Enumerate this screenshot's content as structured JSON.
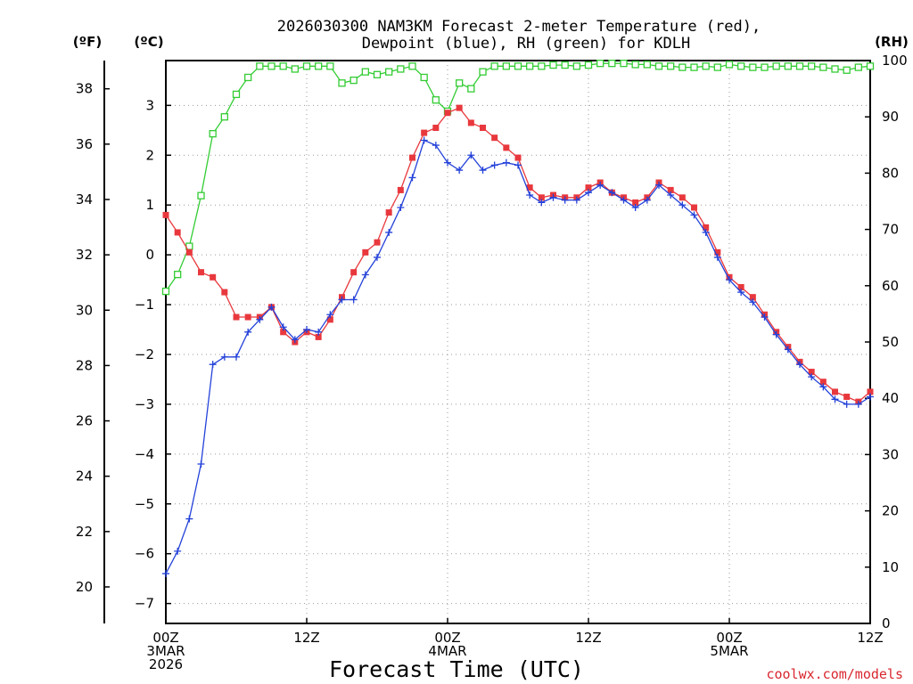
{
  "chart_data": {
    "type": "line",
    "title_line1": "2026030300 NAM3KM Forecast 2-meter Temperature (red),",
    "title_line2": "Dewpoint (blue), RH (green) for KDLH",
    "xlabel": "Forecast Time (UTC)",
    "credit": "coolwx.com/models",
    "units": {
      "fahrenheit": "(ºF)",
      "celsius": "(ºC)",
      "rh": "(RH)"
    },
    "x_range_hours": [
      0,
      60
    ],
    "x_ticks": [
      {
        "hour": 0,
        "lines": [
          "00Z",
          "3MAR",
          "2026"
        ]
      },
      {
        "hour": 12,
        "lines": [
          "12Z"
        ]
      },
      {
        "hour": 24,
        "lines": [
          "00Z",
          "4MAR"
        ]
      },
      {
        "hour": 36,
        "lines": [
          "12Z"
        ]
      },
      {
        "hour": 48,
        "lines": [
          "00Z",
          "5MAR"
        ]
      },
      {
        "hour": 60,
        "lines": [
          "12Z"
        ]
      }
    ],
    "celsius_axis": {
      "range": [
        -7.4,
        3.9
      ],
      "ticks": [
        -7,
        -6,
        -5,
        -4,
        -3,
        -2,
        -1,
        0,
        1,
        2,
        3
      ]
    },
    "fahrenheit_axis": {
      "ticks": [
        20,
        22,
        24,
        26,
        28,
        30,
        32,
        34,
        36,
        38
      ]
    },
    "rh_axis": {
      "range": [
        0,
        100
      ],
      "ticks": [
        0,
        10,
        20,
        30,
        40,
        50,
        60,
        70,
        80,
        90,
        100
      ]
    },
    "colors": {
      "temperature": "#e8383d",
      "dewpoint": "#2341d9",
      "rh": "#33cc33"
    },
    "series": [
      {
        "name": "Temperature",
        "units": "C",
        "hours": [
          0,
          1,
          2,
          3,
          4,
          5,
          6,
          7,
          8,
          9,
          10,
          11,
          12,
          13,
          14,
          15,
          16,
          17,
          18,
          19,
          20,
          21,
          22,
          23,
          24,
          25,
          26,
          27,
          28,
          29,
          30,
          31,
          32,
          33,
          34,
          35,
          36,
          37,
          38,
          39,
          40,
          41,
          42,
          43,
          44,
          45,
          46,
          47,
          48,
          49,
          50,
          51,
          52,
          53,
          54,
          55,
          56,
          57,
          58,
          59,
          60
        ],
        "values": [
          0.8,
          0.45,
          0.05,
          -0.35,
          -0.45,
          -0.75,
          -1.25,
          -1.25,
          -1.25,
          -1.05,
          -1.55,
          -1.75,
          -1.55,
          -1.65,
          -1.3,
          -0.85,
          -0.35,
          0.05,
          0.25,
          0.85,
          1.3,
          1.95,
          2.45,
          2.55,
          2.85,
          2.95,
          2.65,
          2.55,
          2.35,
          2.15,
          1.95,
          1.35,
          1.15,
          1.2,
          1.15,
          1.15,
          1.35,
          1.45,
          1.25,
          1.15,
          1.05,
          1.15,
          1.45,
          1.3,
          1.15,
          0.95,
          0.55,
          0.05,
          -0.45,
          -0.65,
          -0.85,
          -1.2,
          -1.55,
          -1.85,
          -2.15,
          -2.35,
          -2.55,
          -2.75,
          -2.85,
          -2.95,
          -2.75
        ]
      },
      {
        "name": "Dewpoint",
        "units": "C",
        "hours": [
          0,
          1,
          2,
          3,
          4,
          5,
          6,
          7,
          8,
          9,
          10,
          11,
          12,
          13,
          14,
          15,
          16,
          17,
          18,
          19,
          20,
          21,
          22,
          23,
          24,
          25,
          26,
          27,
          28,
          29,
          30,
          31,
          32,
          33,
          34,
          35,
          36,
          37,
          38,
          39,
          40,
          41,
          42,
          43,
          44,
          45,
          46,
          47,
          48,
          49,
          50,
          51,
          52,
          53,
          54,
          55,
          56,
          57,
          58,
          59,
          60
        ],
        "values": [
          -6.4,
          -5.95,
          -5.3,
          -4.2,
          -2.2,
          -2.05,
          -2.05,
          -1.55,
          -1.3,
          -1.05,
          -1.45,
          -1.7,
          -1.5,
          -1.55,
          -1.2,
          -0.9,
          -0.9,
          -0.4,
          -0.05,
          0.45,
          0.95,
          1.55,
          2.3,
          2.2,
          1.85,
          1.7,
          2.0,
          1.7,
          1.8,
          1.85,
          1.8,
          1.2,
          1.05,
          1.15,
          1.1,
          1.1,
          1.25,
          1.4,
          1.25,
          1.1,
          0.95,
          1.1,
          1.4,
          1.2,
          1.0,
          0.8,
          0.45,
          -0.05,
          -0.5,
          -0.75,
          -0.95,
          -1.25,
          -1.6,
          -1.9,
          -2.2,
          -2.45,
          -2.65,
          -2.9,
          -3.0,
          -3.0,
          -2.85
        ]
      },
      {
        "name": "RH",
        "units": "%",
        "hours": [
          0,
          1,
          2,
          3,
          4,
          5,
          6,
          7,
          8,
          9,
          10,
          11,
          12,
          13,
          14,
          15,
          16,
          17,
          18,
          19,
          20,
          21,
          22,
          23,
          24,
          25,
          26,
          27,
          28,
          29,
          30,
          31,
          32,
          33,
          34,
          35,
          36,
          37,
          38,
          39,
          40,
          41,
          42,
          43,
          44,
          45,
          46,
          47,
          48,
          49,
          50,
          51,
          52,
          53,
          54,
          55,
          56,
          57,
          58,
          59,
          60
        ],
        "values": [
          59,
          62,
          67,
          76,
          87,
          90,
          94,
          97,
          99,
          99,
          99,
          98.5,
          99,
          99,
          99,
          96,
          96.5,
          98,
          97.5,
          98,
          98.5,
          99,
          97,
          93,
          91,
          96,
          95,
          98,
          99,
          99,
          99,
          99,
          99,
          99.2,
          99.2,
          99,
          99.2,
          99.5,
          99.5,
          99.5,
          99.3,
          99.3,
          99,
          99,
          98.8,
          98.8,
          99,
          98.8,
          99.3,
          99,
          98.8,
          98.8,
          99,
          99,
          99,
          99,
          98.8,
          98.5,
          98.3,
          98.8,
          99
        ]
      }
    ]
  }
}
